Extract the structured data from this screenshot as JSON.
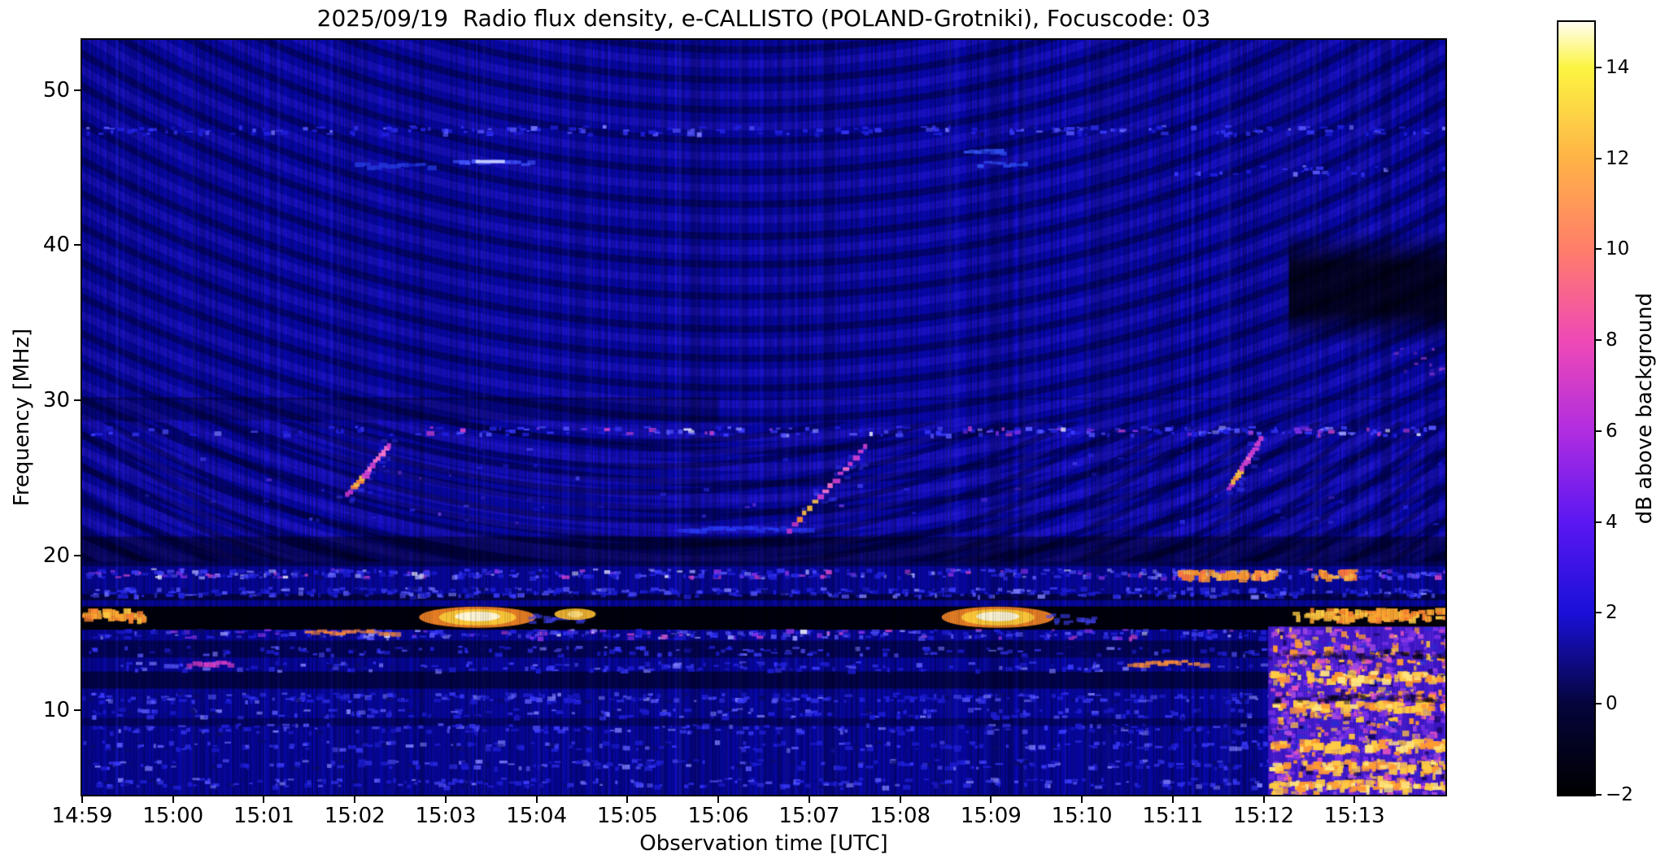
{
  "figure": {
    "title": "2025/09/19  Radio flux density, e-CALLISTO (POLAND-Grotniki), Focuscode: 03",
    "xlabel": "Observation time [UTC]",
    "ylabel": "Frequency [MHz]",
    "colorbar_label": "dB above background",
    "background": "#ffffff"
  },
  "chart_data": {
    "type": "heatmap",
    "subtype": "solar-radio-spectrogram",
    "instrument": "e-CALLISTO",
    "station": "POLAND-Grotniki",
    "date": "2025/09/19",
    "focuscode": "03",
    "title": "2025/09/19  Radio flux density, e-CALLISTO (POLAND-Grotniki), Focuscode: 03",
    "xlabel": "Observation time [UTC]",
    "ylabel": "Frequency [MHz]",
    "x_axis": {
      "start_label": "14:59",
      "end_minutes": 15,
      "tick_minutes": [
        0,
        1,
        2,
        3,
        4,
        5,
        6,
        7,
        8,
        9,
        10,
        11,
        12,
        13,
        14
      ],
      "tick_labels": [
        "14:59",
        "15:00",
        "15:01",
        "15:02",
        "15:03",
        "15:04",
        "15:05",
        "15:06",
        "15:07",
        "15:08",
        "15:09",
        "15:10",
        "15:11",
        "15:12",
        "15:13"
      ]
    },
    "y_axis": {
      "min_mhz": 4.55,
      "max_mhz": 53.25,
      "tick_values": [
        50,
        40,
        30,
        20,
        10
      ],
      "tick_labels": [
        "50",
        "40",
        "30",
        "20",
        "10"
      ]
    },
    "colorbar": {
      "label": "dB above background",
      "min": -2,
      "max": 15,
      "tick_values": [
        14,
        12,
        10,
        8,
        6,
        4,
        2,
        0,
        -2
      ],
      "tick_labels": [
        "14",
        "12",
        "10",
        "8",
        "6",
        "4",
        "2",
        "0",
        "−2"
      ],
      "stops": [
        {
          "v": 15,
          "c": "#fffdf0"
        },
        {
          "v": 14,
          "c": "#fbf542"
        },
        {
          "v": 12,
          "c": "#ffb347"
        },
        {
          "v": 10,
          "c": "#ff7e6a"
        },
        {
          "v": 8,
          "c": "#ef49b5"
        },
        {
          "v": 6,
          "c": "#b02de0"
        },
        {
          "v": 4,
          "c": "#5b17f2"
        },
        {
          "v": 2,
          "c": "#1a10d8"
        },
        {
          "v": 0,
          "c": "#05053c"
        },
        {
          "v": -2,
          "c": "#000000"
        }
      ]
    },
    "background_colors": {
      "base_blue": "#0808b0",
      "ripple_bright": "#2a1ae6",
      "ripple_dark": "#000030"
    },
    "features": {
      "ripples": {
        "desc": "curved interference fringes fanning from flat near 15:06, tilted \\ on left and / on right",
        "region_f": [
          19.6,
          53.25
        ]
      },
      "bursts": [
        {
          "name": "type-III-like-burst-1502",
          "t": [
            2.92,
            3.38
          ],
          "f": [
            24.0,
            27.2
          ]
        },
        {
          "name": "type-III-like-burst-1507",
          "t": [
            7.78,
            8.62
          ],
          "f": [
            21.7,
            27.1
          ]
        },
        {
          "name": "type-III-like-burst-1512",
          "t": [
            12.62,
            12.97
          ],
          "f": [
            24.4,
            27.6
          ]
        }
      ],
      "bright_blobs": [
        {
          "name": "16mhz-left-edge-patch",
          "t": [
            0.0,
            0.65
          ],
          "f": 16.3,
          "intensity_db": 11,
          "kind": "orange"
        },
        {
          "name": "16mhz-blob-1503",
          "t": [
            3.85,
            4.85
          ],
          "f": 16.0,
          "intensity_db": 15,
          "kind": "white"
        },
        {
          "name": "16mhz-spot-1505",
          "t": [
            5.25,
            5.6
          ],
          "f": 16.2,
          "intensity_db": 12,
          "kind": "yellow"
        },
        {
          "name": "16mhz-blob-1509",
          "t": [
            9.6,
            10.55
          ],
          "f": 16.0,
          "intensity_db": 15,
          "kind": "white"
        },
        {
          "name": "16mhz-right-edge-band",
          "t": [
            13.3,
            15.0
          ],
          "f": 16.3,
          "intensity_db": 12,
          "kind": "orange"
        }
      ],
      "streaks": [
        {
          "t": [
            2.45,
            3.4
          ],
          "f": 15.1,
          "c": "#ff8c3c"
        },
        {
          "t": [
            1.15,
            1.6
          ],
          "f": 13.1,
          "c": "#e040c8"
        },
        {
          "t": [
            11.5,
            12.3
          ],
          "f": 13.1,
          "c": "#ff9040"
        },
        {
          "t": [
            14.4,
            14.97
          ],
          "f": 7.3,
          "c": "#ffc83c"
        },
        {
          "t": [
            4.08,
            4.9
          ],
          "f": 45.4,
          "c": "#4456ff",
          "core": "#c8d0ff"
        },
        {
          "t": [
            3.0,
            3.8
          ],
          "f": 45.2,
          "c": "#2336d8"
        },
        {
          "t": [
            9.7,
            10.1
          ],
          "f": 46.1,
          "c": "#3050f0"
        },
        {
          "t": [
            9.85,
            10.35
          ],
          "f": 45.3,
          "c": "#3050f0"
        },
        {
          "t": [
            6.55,
            7.95
          ],
          "f": 21.8,
          "c": "#2838f0"
        }
      ],
      "speckle_rows": [
        {
          "f": 47.5,
          "t": [
            0,
            15
          ],
          "density": 0.5,
          "style": "blue"
        },
        {
          "f": 44.9,
          "t": [
            12,
            15
          ],
          "density": 0.3,
          "style": "blue"
        },
        {
          "f": 28.1,
          "t": [
            3.6,
            15
          ],
          "density": 0.6,
          "style": "mixed"
        },
        {
          "f": 28.1,
          "t": [
            0,
            3.6
          ],
          "density": 0.2,
          "style": "blue"
        },
        {
          "f": 18.9,
          "t": [
            0,
            15
          ],
          "density": 1.0,
          "style": "mixed",
          "orange_segments": [
            [
              12.05,
              13.1
            ],
            [
              13.55,
              14.0
            ]
          ]
        },
        {
          "f": 17.7,
          "t": [
            0,
            15
          ],
          "density": 1.0,
          "style": "blue"
        },
        {
          "f": 15.0,
          "t": [
            0,
            15
          ],
          "density": 0.85,
          "style": "mixed"
        },
        {
          "f": 13.9,
          "t": [
            0,
            13.05
          ],
          "density": 0.4,
          "style": "blue"
        },
        {
          "f": 12.9,
          "t": [
            0,
            13.05
          ],
          "density": 0.45,
          "style": "blue"
        },
        {
          "f": 10.9,
          "t": [
            0,
            15
          ],
          "density": 0.75,
          "style": "blue"
        },
        {
          "f": 9.9,
          "t": [
            0,
            13.05
          ],
          "density": 0.5,
          "style": "blue"
        },
        {
          "f": 8.9,
          "t": [
            0,
            13.05
          ],
          "density": 0.55,
          "style": "blue"
        },
        {
          "f": 7.8,
          "t": [
            0,
            13.05
          ],
          "density": 0.5,
          "style": "blue"
        },
        {
          "f": 6.6,
          "t": [
            0,
            13.05
          ],
          "density": 0.55,
          "style": "blue"
        },
        {
          "f": 5.4,
          "t": [
            0,
            13.05
          ],
          "density": 0.6,
          "style": "blue"
        }
      ],
      "dark_bands": [
        {
          "f": [
            15.2,
            16.7
          ],
          "t": [
            0,
            15
          ],
          "alpha": 0.92
        },
        {
          "f": [
            19.3,
            21.2
          ],
          "t": [
            0,
            15
          ],
          "alpha": 0.4
        },
        {
          "f": [
            17.1,
            17.5
          ],
          "t": [
            0,
            15
          ],
          "alpha": 0.5
        },
        {
          "f": [
            13.4,
            14.5
          ],
          "t": [
            0,
            13.05
          ],
          "alpha": 0.4
        },
        {
          "f": [
            11.4,
            12.5
          ],
          "t": [
            0,
            13.05
          ],
          "alpha": 0.5
        },
        {
          "f": [
            28.7,
            30.2
          ],
          "t": [
            0,
            7
          ],
          "alpha": 0.22
        },
        {
          "f": [
            9.0,
            9.5
          ],
          "t": [
            0,
            13.05
          ],
          "alpha": 0.3
        }
      ],
      "dark_patch": {
        "t": [
          13.28,
          15.0
        ],
        "f": [
          33.5,
          41.0
        ],
        "desc": "dark patch upper right after 15:12"
      },
      "bright_block": {
        "t": [
          13.05,
          15.0
        ],
        "f": [
          4.55,
          15.4
        ],
        "bright_rows_mhz": [
          12.3,
          10.4,
          7.9,
          6.5,
          5.3
        ],
        "desc": "broadband bright noisy block bottom-right"
      }
    }
  }
}
